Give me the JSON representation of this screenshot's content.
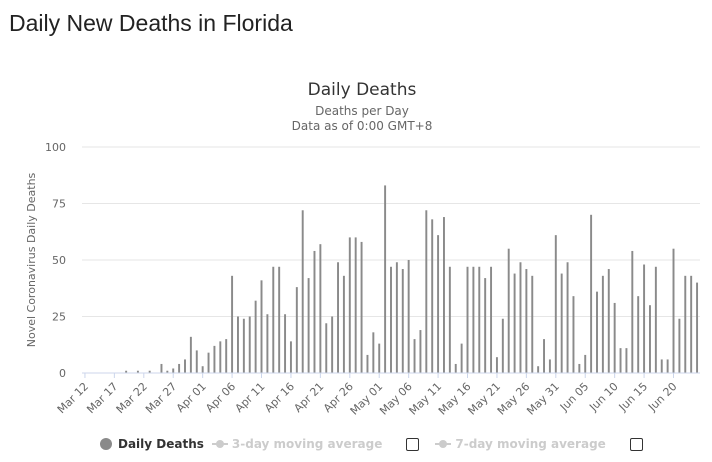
{
  "page": {
    "heading": "Daily New Deaths in Florida"
  },
  "colors": {
    "bar": "#8a8a8a",
    "grid": "#e6e6e6",
    "axis": "#ccd6eb",
    "text": "#333333",
    "muted": "#666666",
    "legend_hidden": "#cccccc"
  },
  "legend": {
    "items": [
      {
        "label": "Daily Deaths",
        "state": "visible",
        "marker": "circle-icon"
      },
      {
        "label": "3-day moving average",
        "state": "hidden",
        "marker": "line-marker-icon"
      },
      {
        "label": "7-day moving average",
        "state": "hidden",
        "marker": "line-marker-icon"
      }
    ]
  },
  "chart_data": {
    "type": "bar",
    "title": "Daily Deaths",
    "subtitle_lines": [
      "Deaths per Day",
      "Data as of 0:00 GMT+8"
    ],
    "ylabel": "Novel Coronavirus Daily Deaths",
    "xlabel": "",
    "ylim": [
      0,
      100
    ],
    "yticks": [
      0,
      25,
      50,
      75,
      100
    ],
    "grid": true,
    "legend_position": "bottom",
    "xtick_labels": [
      "Mar 12",
      "Mar 17",
      "Mar 22",
      "Mar 27",
      "Apr 01",
      "Apr 06",
      "Apr 11",
      "Apr 16",
      "Apr 21",
      "Apr 26",
      "May 01",
      "May 06",
      "May 11",
      "May 16",
      "May 21",
      "May 26",
      "May 31",
      "Jun 05",
      "Jun 10",
      "Jun 15",
      "Jun 20"
    ],
    "tick_every": 5,
    "series": [
      {
        "name": "Daily Deaths",
        "values": [
          0,
          0,
          0,
          0,
          0,
          0,
          0,
          1,
          0,
          1,
          0,
          1,
          0,
          4,
          1,
          2,
          4,
          6,
          16,
          10,
          3,
          9,
          12,
          14,
          15,
          43,
          25,
          24,
          25,
          32,
          41,
          26,
          47,
          47,
          26,
          14,
          38,
          72,
          42,
          54,
          57,
          22,
          25,
          49,
          43,
          60,
          60,
          58,
          8,
          18,
          13,
          83,
          47,
          49,
          46,
          50,
          15,
          19,
          72,
          68,
          61,
          69,
          47,
          4,
          13,
          47,
          47,
          47,
          42,
          47,
          7,
          24,
          55,
          44,
          49,
          46,
          43,
          3,
          15,
          6,
          61,
          44,
          49,
          34,
          4,
          8,
          70,
          36,
          43,
          46,
          31,
          11,
          11,
          54,
          34,
          48,
          30,
          47,
          6,
          6,
          55,
          24,
          43,
          43,
          40
        ]
      }
    ]
  }
}
